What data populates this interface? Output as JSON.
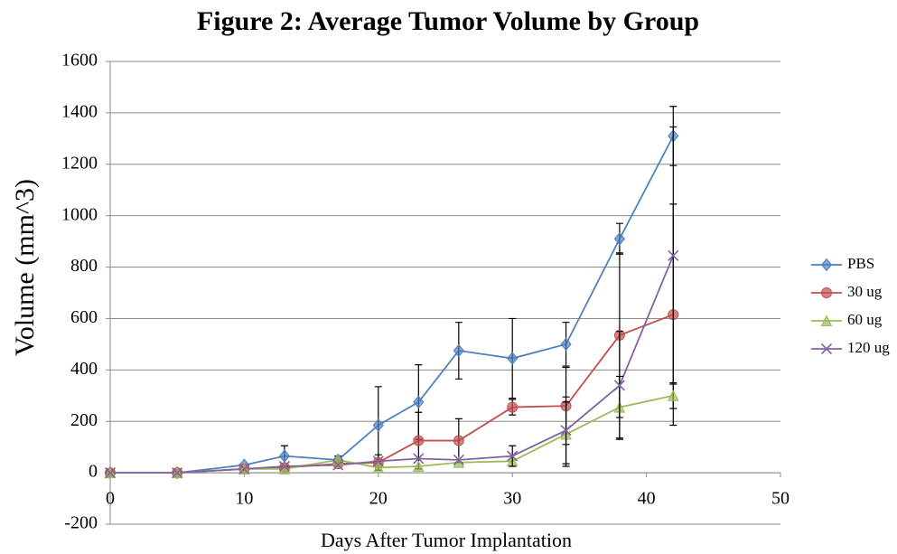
{
  "chart_data": {
    "type": "line",
    "title": "Figure 2: Average  Tumor Volume by Group",
    "x_label": "Days After Tumor Implantation",
    "y_label": "Volume (mm^3)",
    "xlim": [
      0,
      50
    ],
    "xticks": [
      0,
      10,
      20,
      30,
      40,
      50
    ],
    "ylim": [
      -200,
      1600
    ],
    "yticks": [
      -200,
      0,
      200,
      400,
      600,
      800,
      1000,
      1200,
      1400,
      1600
    ],
    "grid": true,
    "legend": "right",
    "x": [
      0,
      5,
      10,
      13,
      17,
      20,
      23,
      26,
      30,
      34,
      38,
      42
    ],
    "series": [
      {
        "name": "PBS",
        "color": "#4f81bd",
        "marker": "diamond",
        "values": [
          0,
          0,
          30,
          65,
          50,
          185,
          275,
          475,
          445,
          500,
          910,
          1310
        ],
        "errors": [
          null,
          null,
          null,
          40,
          15,
          150,
          145,
          110,
          155,
          85,
          60,
          115
        ]
      },
      {
        "name": "30 ug",
        "color": "#c0504d",
        "marker": "circle",
        "values": [
          0,
          0,
          15,
          20,
          35,
          40,
          125,
          125,
          255,
          260,
          535,
          615
        ],
        "errors": [
          null,
          null,
          null,
          null,
          null,
          30,
          110,
          85,
          30,
          150,
          320,
          430
        ]
      },
      {
        "name": "60 ug",
        "color": "#9bbb59",
        "marker": "triangle",
        "values": [
          0,
          0,
          15,
          15,
          50,
          20,
          25,
          40,
          45,
          150,
          255,
          300
        ],
        "errors": [
          null,
          null,
          null,
          null,
          null,
          null,
          null,
          null,
          null,
          125,
          120,
          50
        ]
      },
      {
        "name": "120 ug",
        "color": "#8064a2",
        "marker": "x",
        "values": [
          0,
          0,
          15,
          25,
          30,
          45,
          55,
          50,
          65,
          165,
          340,
          845
        ],
        "errors": [
          null,
          null,
          null,
          null,
          null,
          null,
          null,
          null,
          40,
          130,
          210,
          500
        ]
      }
    ]
  }
}
